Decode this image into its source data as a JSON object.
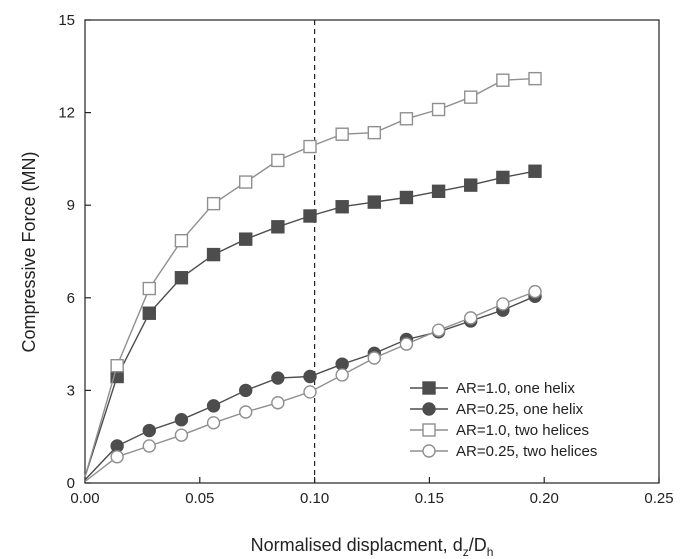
{
  "chart_data": {
    "type": "line",
    "xlabel": "Normalised displacment, d",
    "xlabel_sub1": "z",
    "xlabel_mid": "/D",
    "xlabel_sub2": "h",
    "ylabel": "Compressive Force (MN)",
    "xlim": [
      0,
      0.25
    ],
    "ylim": [
      0,
      15
    ],
    "x_ticks": [
      "0.00",
      "0.05",
      "0.10",
      "0.15",
      "0.20",
      "0.25"
    ],
    "y_ticks": [
      "0",
      "3",
      "6",
      "9",
      "12",
      "15"
    ],
    "x_tick_values": [
      0,
      0.05,
      0.1,
      0.15,
      0.2,
      0.25
    ],
    "y_tick_values": [
      0,
      3,
      6,
      9,
      12,
      15
    ],
    "reference_line_x": 0.1,
    "legend_position": "bottom-right",
    "grid": false,
    "series": [
      {
        "name": "AR=1.0, one helix",
        "marker": "square",
        "filled": true,
        "x": [
          0.0,
          0.014,
          0.028,
          0.042,
          0.056,
          0.07,
          0.084,
          0.098,
          0.112,
          0.126,
          0.14,
          0.154,
          0.168,
          0.182,
          0.196
        ],
        "y": [
          0.2,
          3.45,
          5.5,
          6.65,
          7.4,
          7.9,
          8.3,
          8.65,
          8.95,
          9.1,
          9.25,
          9.45,
          9.65,
          9.9,
          10.1
        ]
      },
      {
        "name": "AR=0.25, one helix",
        "marker": "circle",
        "filled": true,
        "x": [
          0.0,
          0.014,
          0.028,
          0.042,
          0.056,
          0.07,
          0.084,
          0.098,
          0.112,
          0.126,
          0.14,
          0.154,
          0.168,
          0.182,
          0.196
        ],
        "y": [
          0.1,
          1.2,
          1.7,
          2.05,
          2.5,
          3.0,
          3.4,
          3.45,
          3.85,
          4.2,
          4.65,
          4.9,
          5.25,
          5.6,
          6.05
        ]
      },
      {
        "name": "AR=1.0, two helices",
        "marker": "square",
        "filled": false,
        "x": [
          0.0,
          0.014,
          0.028,
          0.042,
          0.056,
          0.07,
          0.084,
          0.098,
          0.112,
          0.126,
          0.14,
          0.154,
          0.168,
          0.182,
          0.196
        ],
        "y": [
          0.2,
          3.8,
          6.3,
          7.85,
          9.05,
          9.75,
          10.45,
          10.9,
          11.3,
          11.35,
          11.8,
          12.1,
          12.5,
          13.05,
          13.1
        ]
      },
      {
        "name": "AR=0.25, two helices",
        "marker": "circle",
        "filled": false,
        "x": [
          0.0,
          0.014,
          0.028,
          0.042,
          0.056,
          0.07,
          0.084,
          0.098,
          0.112,
          0.126,
          0.14,
          0.154,
          0.168,
          0.182,
          0.196
        ],
        "y": [
          0.05,
          0.85,
          1.2,
          1.55,
          1.95,
          2.3,
          2.6,
          2.95,
          3.5,
          4.05,
          4.5,
          4.95,
          5.35,
          5.8,
          6.2
        ]
      }
    ]
  }
}
